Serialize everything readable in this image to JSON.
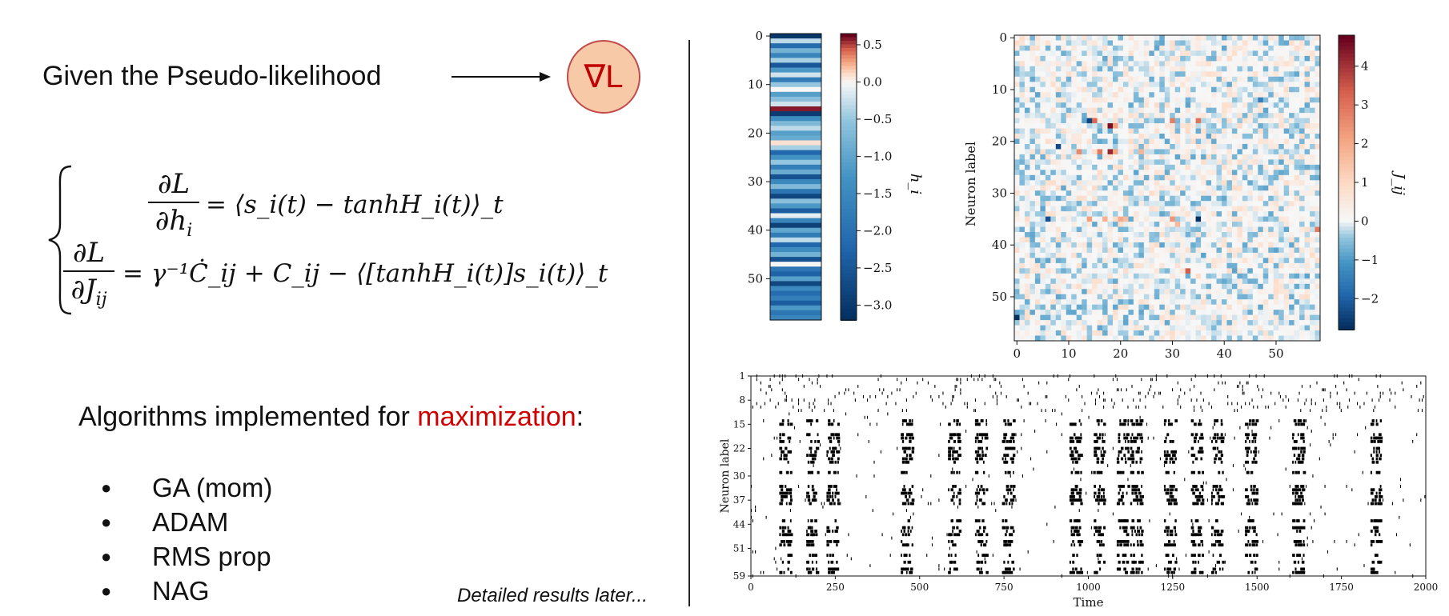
{
  "left": {
    "given_text": "Given the Pseudo-likelihood",
    "gradient_badge": "∇L",
    "algorithms_prefix": "Algorithms implemented for ",
    "algorithms_highlight": "maximization",
    "algorithms_suffix": ":",
    "algorithms": [
      "GA (mom)",
      "ADAM",
      "RMS prop",
      "NAG"
    ],
    "footnote": "Detailed results later...",
    "colors": {
      "badge_fill": "#f7c9a7",
      "badge_stroke": "#c24a4a",
      "badge_text": "#c00000",
      "highlight": "#d00000"
    }
  },
  "equations": {
    "eq1_num": "∂L",
    "eq1_den": "∂h",
    "eq1_den_sub": "i",
    "eq1_rhs": "= ⟨s_i(t) − tanhH_i(t)⟩_t",
    "eq2_num": "∂L",
    "eq2_den": "∂J",
    "eq2_den_sub": "ij",
    "eq2_rhs": "= γ⁻¹Ċ_ij + C_ij − ⟨[tanhH_i(t)]s_i(t)⟩_t"
  },
  "chart_data": [
    {
      "type": "heatmap",
      "ylabel_cbar": "h_i",
      "yticks": [
        0,
        10,
        20,
        30,
        40,
        50
      ],
      "colorbar_ticks": [
        "0.5",
        "0.0",
        "−0.5",
        "−1.0",
        "−1.5",
        "−2.0",
        "−2.5",
        "−3.0"
      ],
      "colorbar_range": [
        -3.2,
        0.65
      ],
      "values": [
        -3.1,
        -0.3,
        -2.1,
        -0.8,
        -1.6,
        -0.4,
        -2.5,
        -1.2,
        -0.2,
        -1.8,
        -0.5,
        0.0,
        -1.1,
        -0.6,
        -0.2,
        0.6,
        -3.0,
        -1.4,
        -0.7,
        -0.3,
        -1.1,
        -0.9,
        0.1,
        -0.4,
        -2.2,
        -1.3,
        -0.5,
        -1.7,
        -0.9,
        -2.6,
        -1.5,
        -0.7,
        -1.9,
        -2.8,
        -0.6,
        -1.2,
        -2.4,
        -0.1,
        -1.6,
        -2.9,
        -1.0,
        -1.8,
        -0.3,
        -2.2,
        -1.4,
        -0.8,
        -2.6,
        0.0,
        -1.9,
        -2.3,
        -1.1,
        -2.8,
        -1.5,
        -2.1,
        -1.7,
        -2.4,
        -1.2,
        -1.9,
        -1.6
      ]
    },
    {
      "type": "heatmap",
      "ylabel": "Neuron label",
      "cbar_label": "J_ij",
      "xticks": [
        0,
        10,
        20,
        30,
        40,
        50
      ],
      "yticks": [
        0,
        10,
        20,
        30,
        40,
        50
      ],
      "colorbar_ticks": [
        "4",
        "3",
        "2",
        "1",
        "0",
        "−1",
        "−2"
      ],
      "colorbar_range": [
        -2.8,
        4.8
      ],
      "size": 59,
      "highlights": [
        {
          "i": 16,
          "j": 14,
          "v": -2.5
        },
        {
          "i": 16,
          "j": 15,
          "v": 3.2
        },
        {
          "i": 17,
          "j": 18,
          "v": 4.6
        },
        {
          "i": 17,
          "j": 19,
          "v": 2.2
        },
        {
          "i": 16,
          "j": 30,
          "v": 2.8
        },
        {
          "i": 16,
          "j": 35,
          "v": 3.0
        },
        {
          "i": 22,
          "j": 12,
          "v": 2.6
        },
        {
          "i": 22,
          "j": 16,
          "v": 2.9
        },
        {
          "i": 22,
          "j": 18,
          "v": 4.2
        },
        {
          "i": 22,
          "j": 19,
          "v": 2.1
        },
        {
          "i": 22,
          "j": 24,
          "v": 1.8
        },
        {
          "i": 21,
          "j": 8,
          "v": -2.4
        },
        {
          "i": 35,
          "j": 6,
          "v": -2.3
        },
        {
          "i": 35,
          "j": 14,
          "v": 2.2
        },
        {
          "i": 35,
          "j": 17,
          "v": 1.9
        },
        {
          "i": 35,
          "j": 20,
          "v": 2.0
        },
        {
          "i": 35,
          "j": 21,
          "v": 1.6
        },
        {
          "i": 35,
          "j": 30,
          "v": 2.4
        },
        {
          "i": 35,
          "j": 35,
          "v": -3.0
        },
        {
          "i": 36,
          "j": 31,
          "v": 1.7
        },
        {
          "i": 37,
          "j": 58,
          "v": 2.9
        },
        {
          "i": 45,
          "j": 33,
          "v": 3.4
        },
        {
          "i": 54,
          "j": 0,
          "v": -3.0
        },
        {
          "i": 12,
          "j": 47,
          "v": -1.5
        }
      ]
    },
    {
      "type": "scatter",
      "xlabel": "Time",
      "ylabel": "Neuron label",
      "xticks": [
        0,
        250,
        500,
        750,
        1000,
        1250,
        1500,
        1750,
        2000
      ],
      "yticks": [
        1,
        8,
        15,
        22,
        30,
        37,
        44,
        51,
        59
      ],
      "xlim": [
        0,
        2000
      ],
      "ylim": [
        1,
        59
      ],
      "bursts": [
        100,
        180,
        240,
        460,
        600,
        680,
        760,
        960,
        1030,
        1100,
        1140,
        1240,
        1320,
        1380,
        1480,
        1620,
        1850
      ]
    }
  ]
}
